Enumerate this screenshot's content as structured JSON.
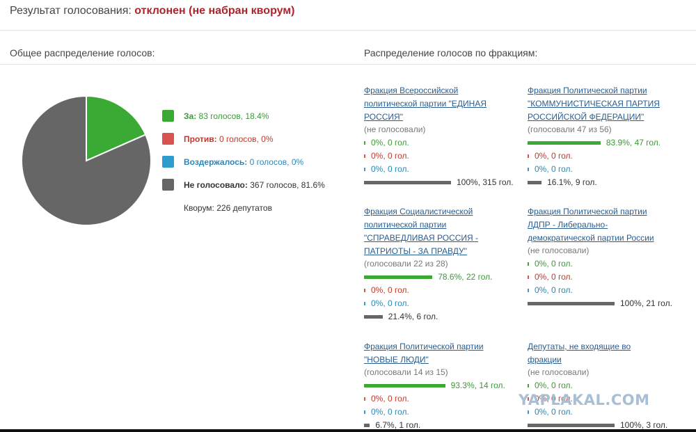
{
  "header": {
    "label": "Результат голосования:",
    "result": "отклонен (не набран кворум)"
  },
  "overall": {
    "title": "Общее распределение голосов:",
    "items": [
      {
        "label": "За:",
        "text": "83 голосов, 18.4%",
        "percent": 18.4
      },
      {
        "label": "Против:",
        "text": "0 голосов, 0%",
        "percent": 0
      },
      {
        "label": "Воздержалось:",
        "text": "0 голосов, 0%",
        "percent": 0
      },
      {
        "label": "Не голосовало:",
        "text": "367 голосов, 81.6%",
        "percent": 81.6
      }
    ],
    "quorum": "Кворум: 226 депутатов"
  },
  "factions": {
    "title": "Распределение голосов по фракциям:",
    "items": [
      {
        "name": "Фракция Всероссийской политической партии \"ЕДИНАЯ РОССИЯ\"",
        "status": "(не голосовали)",
        "rows": [
          {
            "text": "0%, 0 гол.",
            "percent": 0
          },
          {
            "text": "0%, 0 гол.",
            "percent": 0
          },
          {
            "text": "0%, 0 гол.",
            "percent": 0
          },
          {
            "text": "100%, 315 гол.",
            "percent": 100
          }
        ]
      },
      {
        "name": "Фракция Политической партии \"КОММУНИСТИЧЕСКАЯ ПАРТИЯ РОССИЙСКОЙ ФЕДЕРАЦИИ\"",
        "status": "(голосовали 47 из 56)",
        "rows": [
          {
            "text": "83.9%, 47 гол.",
            "percent": 83.9
          },
          {
            "text": "0%, 0 гол.",
            "percent": 0
          },
          {
            "text": "0%, 0 гол.",
            "percent": 0
          },
          {
            "text": "16.1%, 9 гол.",
            "percent": 16.1
          }
        ]
      },
      {
        "name": "Фракция Социалистической политической партии \"СПРАВЕДЛИВАЯ РОССИЯ - ПАТРИОТЫ - ЗА ПРАВДУ\"",
        "status": "(голосовали 22 из 28)",
        "rows": [
          {
            "text": "78.6%, 22 гол.",
            "percent": 78.6
          },
          {
            "text": "0%, 0 гол.",
            "percent": 0
          },
          {
            "text": "0%, 0 гол.",
            "percent": 0
          },
          {
            "text": "21.4%, 6 гол.",
            "percent": 21.4
          }
        ]
      },
      {
        "name": "Фракция Политической партии ЛДПР - Либерально-демократической партии России",
        "status": "(не голосовали)",
        "rows": [
          {
            "text": "0%, 0 гол.",
            "percent": 0
          },
          {
            "text": "0%, 0 гол.",
            "percent": 0
          },
          {
            "text": "0%, 0 гол.",
            "percent": 0
          },
          {
            "text": "100%, 21 гол.",
            "percent": 100
          }
        ]
      },
      {
        "name": "Фракция Политической партии \"НОВЫЕ ЛЮДИ\"",
        "status": "(голосовали 14 из 15)",
        "rows": [
          {
            "text": "93.3%, 14 гол.",
            "percent": 93.3
          },
          {
            "text": "0%, 0 гол.",
            "percent": 0
          },
          {
            "text": "0%, 0 гол.",
            "percent": 0
          },
          {
            "text": "6.7%, 1 гол.",
            "percent": 6.7
          }
        ]
      },
      {
        "name": "Депутаты, не входящие во фракции",
        "status": "(не голосовали)",
        "rows": [
          {
            "text": "0%, 0 гол.",
            "percent": 0
          },
          {
            "text": "0%, 0 гол.",
            "percent": 0
          },
          {
            "text": "0%, 0 гол.",
            "percent": 0
          },
          {
            "text": "100%, 3 гол.",
            "percent": 100
          }
        ]
      }
    ]
  },
  "watermark": "YAPLAKAL.COM"
}
